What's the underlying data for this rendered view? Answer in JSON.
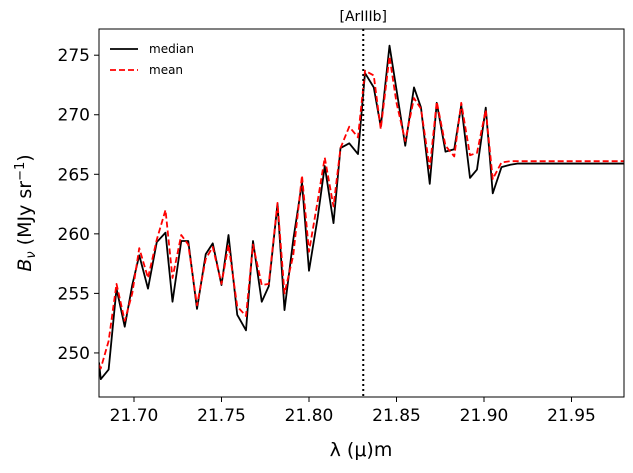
{
  "chart_data": {
    "type": "line",
    "title": "",
    "xlabel": "λ (μ)m",
    "ylabel": "B_ν (MJy sr^-1)",
    "xlim": [
      21.68,
      21.98
    ],
    "ylim": [
      246.3,
      277.2
    ],
    "x_ticks": [
      21.7,
      21.75,
      21.8,
      21.85,
      21.9,
      21.95
    ],
    "x_tick_labels": [
      "21.70",
      "21.75",
      "21.80",
      "21.85",
      "21.90",
      "21.95"
    ],
    "y_ticks": [
      250,
      255,
      260,
      265,
      270,
      275
    ],
    "y_tick_labels": [
      "250",
      "255",
      "260",
      "265",
      "270",
      "275"
    ],
    "grid": false,
    "legend_position": "top-left",
    "annotation": {
      "label": "[ArIIIb]",
      "x": 21.831,
      "style": "dotted vertical line"
    },
    "x": [
      21.68,
      21.681,
      21.6855,
      21.69,
      21.6947,
      21.699,
      21.703,
      21.708,
      21.713,
      21.718,
      21.722,
      21.727,
      21.731,
      21.736,
      21.741,
      21.745,
      21.75,
      21.754,
      21.759,
      21.764,
      21.768,
      21.773,
      21.777,
      21.782,
      21.786,
      21.791,
      21.796,
      21.8,
      21.805,
      21.809,
      21.814,
      21.818,
      21.823,
      21.828,
      21.832,
      21.837,
      21.841,
      21.846,
      21.85,
      21.855,
      21.86,
      21.864,
      21.869,
      21.873,
      21.878,
      21.883,
      21.887,
      21.892,
      21.896,
      21.901,
      21.905,
      21.91,
      21.915,
      21.919,
      21.924,
      21.928,
      21.933,
      21.937,
      21.942,
      21.947,
      21.951,
      21.956,
      21.96,
      21.965,
      21.969,
      21.974,
      21.978,
      21.98
    ],
    "series": [
      {
        "name": "median",
        "color": "#000000",
        "dash": "solid",
        "values": [
          249.2,
          247.8,
          248.6,
          255.4,
          252.2,
          255.7,
          258.2,
          255.4,
          259.3,
          260.1,
          254.3,
          259.4,
          259.4,
          253.7,
          258.3,
          259.2,
          255.7,
          259.9,
          253.2,
          251.9,
          259.4,
          254.3,
          255.6,
          262.5,
          253.6,
          259.5,
          264.3,
          256.9,
          261.4,
          265.7,
          260.9,
          267.2,
          267.6,
          266.7,
          273.5,
          272.3,
          269.0,
          275.8,
          272.1,
          267.4,
          272.3,
          270.6,
          264.2,
          271.0,
          266.9,
          267.1,
          270.8,
          264.7,
          265.4,
          270.6,
          263.4,
          265.6,
          265.8,
          265.9,
          265.9,
          265.9,
          265.9,
          265.9,
          265.9,
          265.9,
          265.9,
          265.9,
          265.9,
          265.9,
          265.9,
          265.9,
          265.9,
          265.9
        ]
      },
      {
        "name": "mean",
        "color": "#ff0000",
        "dash": "dashed",
        "values": [
          249.0,
          248.7,
          251.0,
          255.8,
          252.7,
          255.0,
          258.8,
          256.3,
          259.5,
          262.0,
          256.3,
          259.9,
          259.1,
          254.0,
          257.9,
          258.9,
          255.8,
          259.1,
          253.9,
          253.1,
          259.1,
          255.7,
          255.8,
          262.6,
          255.0,
          258.2,
          264.9,
          258.5,
          262.8,
          266.4,
          262.3,
          267.2,
          269.0,
          268.1,
          273.7,
          273.3,
          268.8,
          274.9,
          271.0,
          267.8,
          271.4,
          270.5,
          265.5,
          271.1,
          267.4,
          266.5,
          271.0,
          266.6,
          266.8,
          270.4,
          264.6,
          266.0,
          266.1,
          266.1,
          266.1,
          266.1,
          266.1,
          266.1,
          266.1,
          266.1,
          266.1,
          266.1,
          266.1,
          266.1,
          266.1,
          266.1,
          266.1,
          266.1
        ]
      }
    ]
  }
}
